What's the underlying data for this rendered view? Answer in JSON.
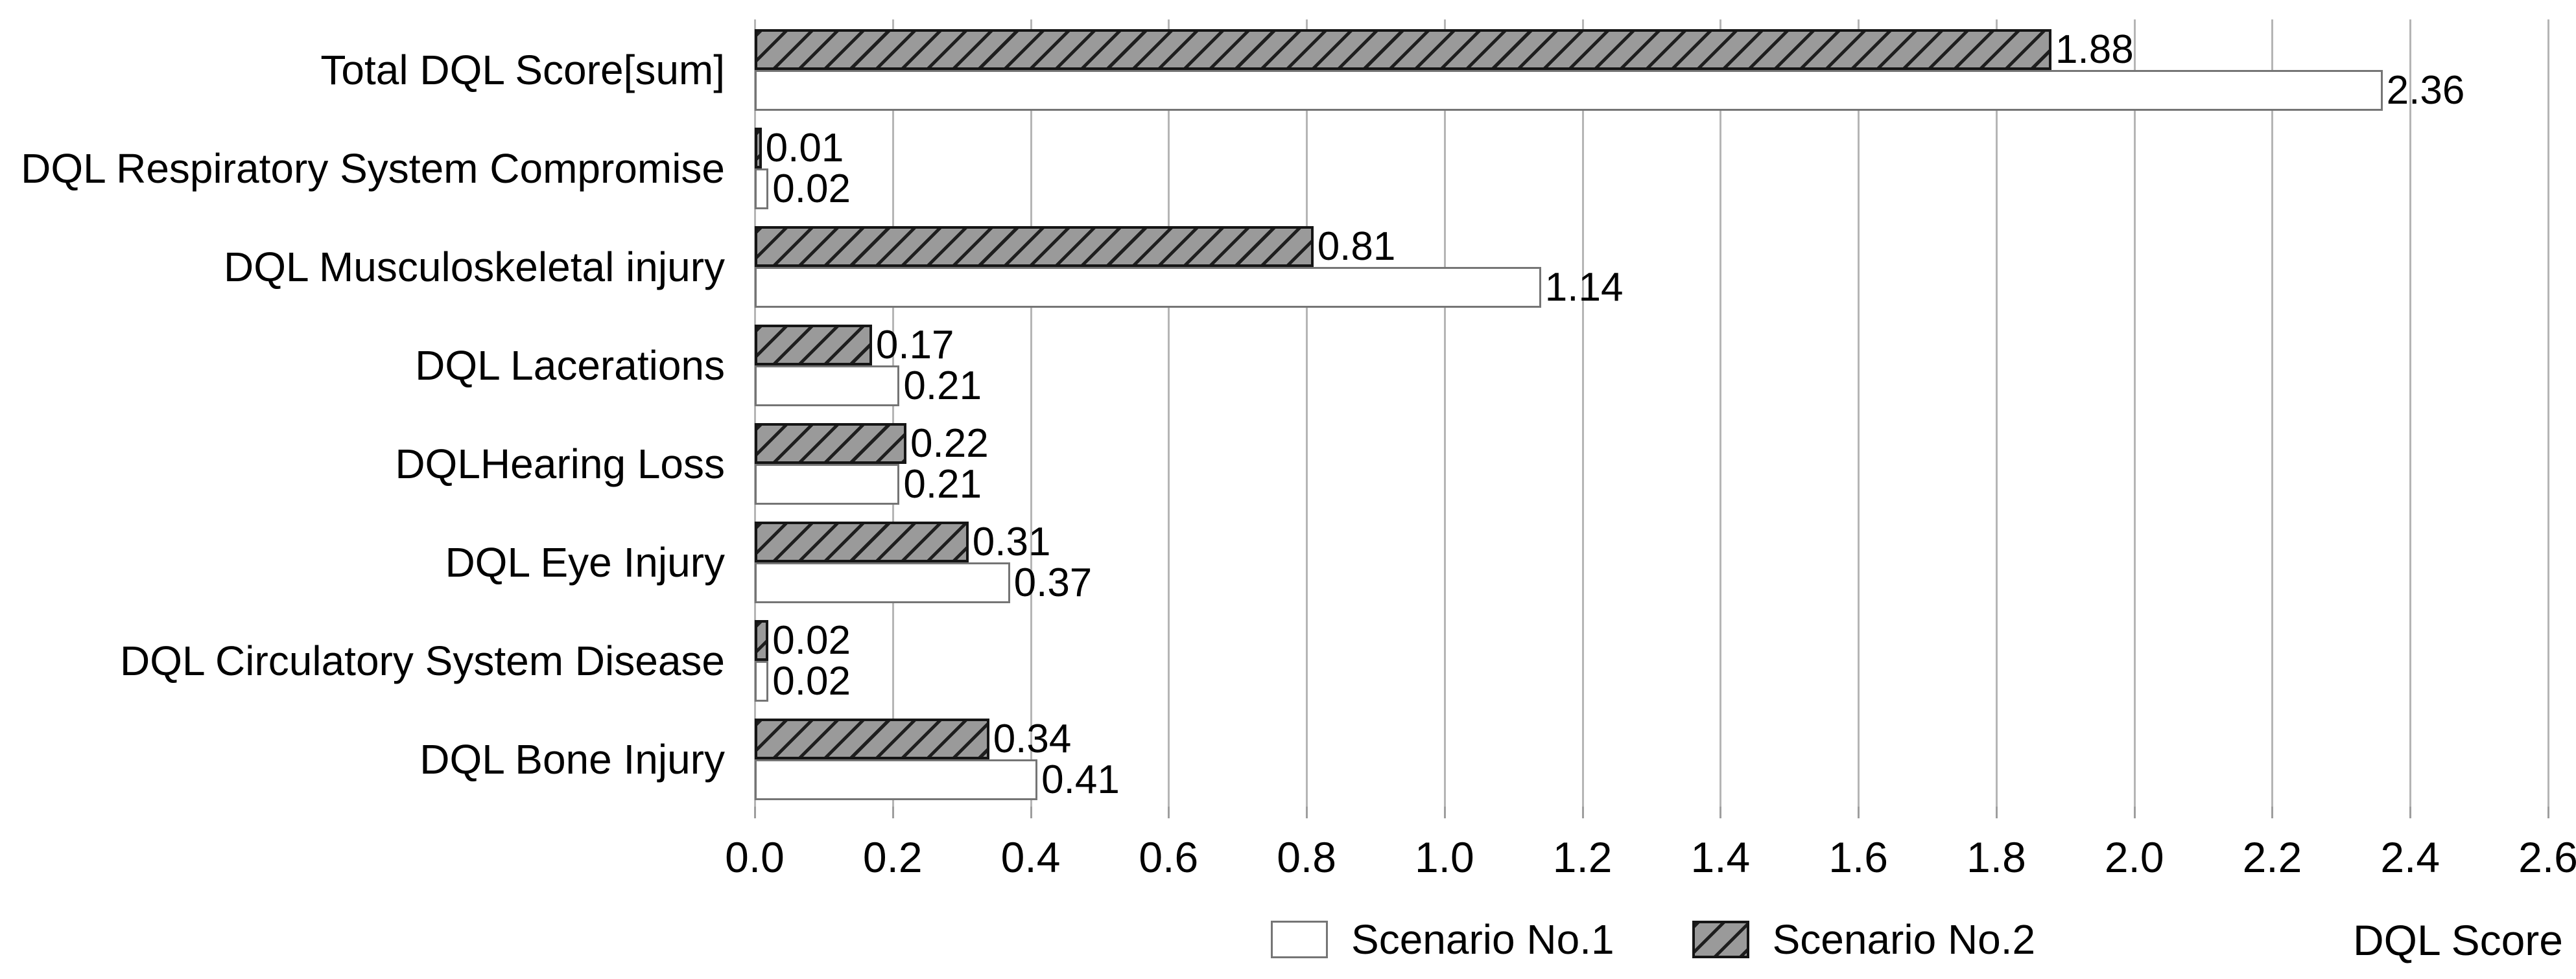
{
  "colors": {
    "background": "#ffffff",
    "text": "#000000",
    "gridline": "#b5b5b5",
    "tick": "#9e9e9e",
    "hatched_fill": "#9a9a9a",
    "hatched_line": "#1e1e1e",
    "hatched_border": "#151515",
    "white_fill": "#ffffff",
    "white_border": "#757575"
  },
  "legend": {
    "items": [
      {
        "label": "Scenario No.1",
        "swatch": "white"
      },
      {
        "label": "Scenario No.2",
        "swatch": "hatched"
      }
    ]
  },
  "chart_data": {
    "type": "bar",
    "orientation": "horizontal",
    "title": "",
    "xlabel": "DQL Score",
    "ylabel": "",
    "xlim": [
      0,
      2.6
    ],
    "grid": true,
    "legend_position": "bottom",
    "xticks": [
      0.0,
      0.2,
      0.4,
      0.6,
      0.8,
      1.0,
      1.2,
      1.4,
      1.6,
      1.8,
      2.0,
      2.2,
      2.4,
      2.6
    ],
    "xtick_labels": [
      "0.0",
      "0.2",
      "0.4",
      "0.6",
      "0.8",
      "1.0",
      "1.2",
      "1.4",
      "1.6",
      "1.8",
      "2.0",
      "2.2",
      "2.4",
      "2.6"
    ],
    "categories": [
      "Total DQL Score[sum]",
      "DQL Respiratory System Compromise",
      "DQL Musculoskeletal injury",
      "DQL Lacerations",
      "DQLHearing Loss",
      "DQL Eye Injury",
      "DQL Circulatory System Disease",
      "DQL Bone Injury"
    ],
    "series": [
      {
        "name": "Scenario No.1",
        "pattern": "white",
        "values": [
          2.36,
          0.02,
          1.14,
          0.21,
          0.21,
          0.37,
          0.02,
          0.41
        ],
        "value_labels": [
          "2.36",
          "0.02",
          "1.14",
          "0.21",
          "0.21",
          "0.37",
          "0.02",
          "0.41"
        ]
      },
      {
        "name": "Scenario No.2",
        "pattern": "hatched",
        "values": [
          1.88,
          0.01,
          0.81,
          0.17,
          0.22,
          0.31,
          0.02,
          0.34
        ],
        "value_labels": [
          "1.88",
          "0.01",
          "0.81",
          "0.17",
          "0.22",
          "0.31",
          "0.02",
          "0.34"
        ]
      }
    ],
    "bar_order_within_group_top_to_bottom": [
      "Scenario No.2",
      "Scenario No.1"
    ]
  }
}
